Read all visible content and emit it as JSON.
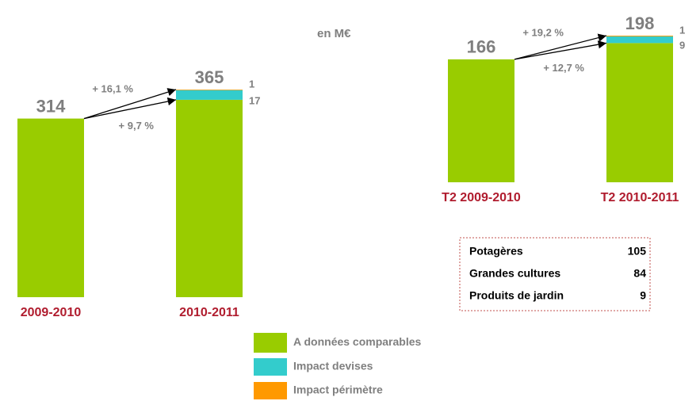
{
  "chart_data": {
    "type": "bar",
    "stacked": true,
    "unit": "en M€",
    "series": [
      {
        "name": "A données comparables",
        "color": "#99cc00"
      },
      {
        "name": "Impact devises",
        "color": "#33cccc"
      },
      {
        "name": "Impact périmètre",
        "color": "#ff9900"
      }
    ],
    "panels": [
      {
        "categories": [
          "2009-2010",
          "2010-2011"
        ],
        "ylim": [
          0,
          365
        ],
        "values": [
          [
            314,
            347
          ],
          [
            null,
            17
          ],
          [
            null,
            1
          ]
        ],
        "totals": [
          314,
          365
        ],
        "growth": [
          "+ 16,1 %",
          "+ 9,7 %"
        ]
      },
      {
        "categories": [
          "T2 2009-2010",
          "T2 2010-2011"
        ],
        "ylim": [
          0,
          198
        ],
        "values": [
          [
            166,
            188
          ],
          [
            null,
            9
          ],
          [
            null,
            1
          ]
        ],
        "totals": [
          166,
          198
        ],
        "growth": [
          "+ 19,2 %",
          "+ 12,7 %"
        ]
      }
    ]
  },
  "table": {
    "rows": [
      [
        "Potagères",
        105
      ],
      [
        "Grandes cultures",
        84
      ],
      [
        "Produits de jardin",
        9
      ]
    ]
  }
}
